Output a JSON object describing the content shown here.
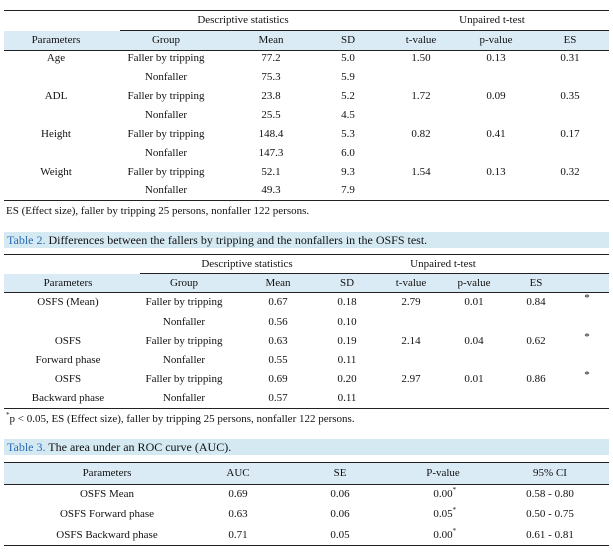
{
  "table1": {
    "group_headers": [
      "Descriptive statistics",
      "Unpaired t-test"
    ],
    "columns": [
      "Parameters",
      "Group",
      "Mean",
      "SD",
      "t-value",
      "p-value",
      "ES"
    ],
    "rows": [
      {
        "parameter": "Age",
        "group": "Faller by tripping",
        "values": [
          "77.2",
          "5.0",
          "1.50",
          "0.13",
          "0.31"
        ]
      },
      {
        "group": "Nonfaller",
        "values": [
          "75.3",
          "5.9"
        ]
      },
      {
        "parameter": "ADL",
        "group": "Faller by tripping",
        "values": [
          "23.8",
          "5.2",
          "1.72",
          "0.09",
          "0.35"
        ]
      },
      {
        "group": "Nonfaller",
        "values": [
          "25.5",
          "4.5"
        ]
      },
      {
        "parameter": "Height",
        "group": "Faller by tripping",
        "values": [
          "148.4",
          "5.3",
          "0.82",
          "0.41",
          "0.17"
        ]
      },
      {
        "group": "Nonfaller",
        "values": [
          "147.3",
          "6.0"
        ]
      },
      {
        "parameter": "Weight",
        "group": "Faller by tripping",
        "values": [
          "52.1",
          "9.3",
          "1.54",
          "0.13",
          "0.32"
        ]
      },
      {
        "group": "Nonfaller",
        "values": [
          "49.3",
          "7.9"
        ]
      }
    ],
    "footnote": "ES (Effect size), faller by tripping 25 persons, nonfaller 122 persons."
  },
  "table2": {
    "label": "Table 2.",
    "caption": "Differences between the fallers by tripping and the nonfallers in the OSFS test.",
    "group_headers": [
      "Descriptive statistics",
      "Unpaired t-test"
    ],
    "columns": [
      "Parameters",
      "Group",
      "Mean",
      "SD",
      "t-value",
      "p-value",
      "ES"
    ],
    "rows": [
      {
        "parameter": "OSFS (Mean)",
        "group": "Faller by tripping",
        "values": [
          "0.67",
          "0.18",
          "2.79",
          "0.01",
          "0.84"
        ],
        "mark": "*"
      },
      {
        "group": "Nonfaller",
        "values": [
          "0.56",
          "0.10"
        ]
      },
      {
        "parameter": "OSFS",
        "group": "Faller by tripping",
        "values": [
          "0.63",
          "0.19",
          "2.14",
          "0.04",
          "0.62"
        ],
        "mark": "*"
      },
      {
        "parameter": "Forward phase",
        "group": "Nonfaller",
        "values": [
          "0.55",
          "0.11"
        ]
      },
      {
        "parameter": "OSFS",
        "group": "Faller by tripping",
        "values": [
          "0.69",
          "0.20",
          "2.97",
          "0.01",
          "0.86"
        ],
        "mark": "*"
      },
      {
        "parameter": "Backward phase",
        "group": "Nonfaller",
        "values": [
          "0.57",
          "0.11"
        ]
      }
    ],
    "footnote_mark": "*",
    "footnote": "p < 0.05, ES (Effect size), faller by tripping 25 persons, nonfaller 122 persons."
  },
  "table3": {
    "label": "Table 3.",
    "caption": "The area under an ROC curve (AUC).",
    "columns": [
      "Parameters",
      "AUC",
      "SE",
      "P-value",
      "95% CI"
    ],
    "rows": [
      {
        "parameter": "OSFS Mean",
        "auc": "0.69",
        "se": "0.06",
        "p": "0.00",
        "p_mark": "*",
        "ci": "0.58 - 0.80"
      },
      {
        "parameter": "OSFS Forward phase",
        "auc": "0.63",
        "se": "0.06",
        "p": "0.05",
        "p_mark": "*",
        "ci": "0.50 - 0.75"
      },
      {
        "parameter": "OSFS Backward phase",
        "auc": "0.71",
        "se": "0.05",
        "p": "0.00",
        "p_mark": "*",
        "ci": "0.61 - 0.81"
      }
    ]
  }
}
